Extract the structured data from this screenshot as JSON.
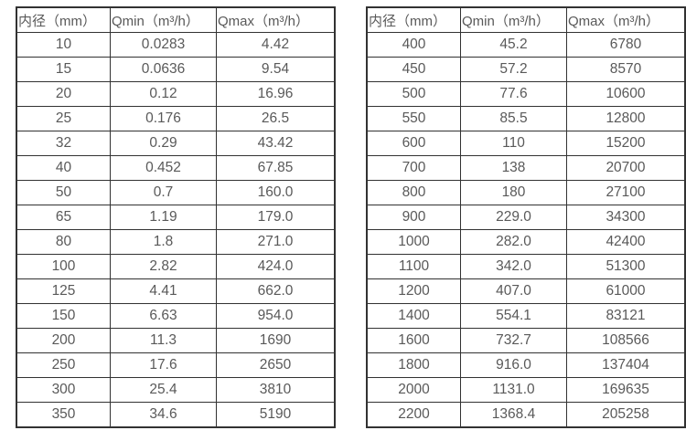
{
  "page": {
    "background_color": "#ffffff",
    "border_color": "#323232",
    "text_color": "#595959"
  },
  "tables": [
    {
      "name": "flow-spec-table-left",
      "headers": [
        "内径（mm）",
        "Qmin（m³/h）",
        "Qmax（m³/h）"
      ],
      "rows": [
        [
          "10",
          "0.0283",
          "4.42"
        ],
        [
          "15",
          "0.0636",
          "9.54"
        ],
        [
          "20",
          "0.12",
          "16.96"
        ],
        [
          "25",
          "0.176",
          "26.5"
        ],
        [
          "32",
          "0.29",
          "43.42"
        ],
        [
          "40",
          "0.452",
          "67.85"
        ],
        [
          "50",
          "0.7",
          "160.0"
        ],
        [
          "65",
          "1.19",
          "179.0"
        ],
        [
          "80",
          "1.8",
          "271.0"
        ],
        [
          "100",
          "2.82",
          "424.0"
        ],
        [
          "125",
          "4.41",
          "662.0"
        ],
        [
          "150",
          "6.63",
          "954.0"
        ],
        [
          "200",
          "11.3",
          "1690"
        ],
        [
          "250",
          "17.6",
          "2650"
        ],
        [
          "300",
          "25.4",
          "3810"
        ],
        [
          "350",
          "34.6",
          "5190"
        ]
      ]
    },
    {
      "name": "flow-spec-table-right",
      "headers": [
        "内径（mm）",
        "Qmin（m³/h）",
        "Qmax（m³/h）"
      ],
      "rows": [
        [
          "400",
          "45.2",
          "6780"
        ],
        [
          "450",
          "57.2",
          "8570"
        ],
        [
          "500",
          "77.6",
          "10600"
        ],
        [
          "550",
          "85.5",
          "12800"
        ],
        [
          "600",
          "110",
          "15200"
        ],
        [
          "700",
          "138",
          "20700"
        ],
        [
          "800",
          "180",
          "27100"
        ],
        [
          "900",
          "229.0",
          "34300"
        ],
        [
          "1000",
          "282.0",
          "42400"
        ],
        [
          "1100",
          "342.0",
          "51300"
        ],
        [
          "1200",
          "407.0",
          "61000"
        ],
        [
          "1400",
          "554.1",
          "83121"
        ],
        [
          "1600",
          "732.7",
          "108566"
        ],
        [
          "1800",
          "916.0",
          "137404"
        ],
        [
          "2000",
          "1131.0",
          "169635"
        ],
        [
          "2200",
          "1368.4",
          "205258"
        ]
      ]
    }
  ]
}
